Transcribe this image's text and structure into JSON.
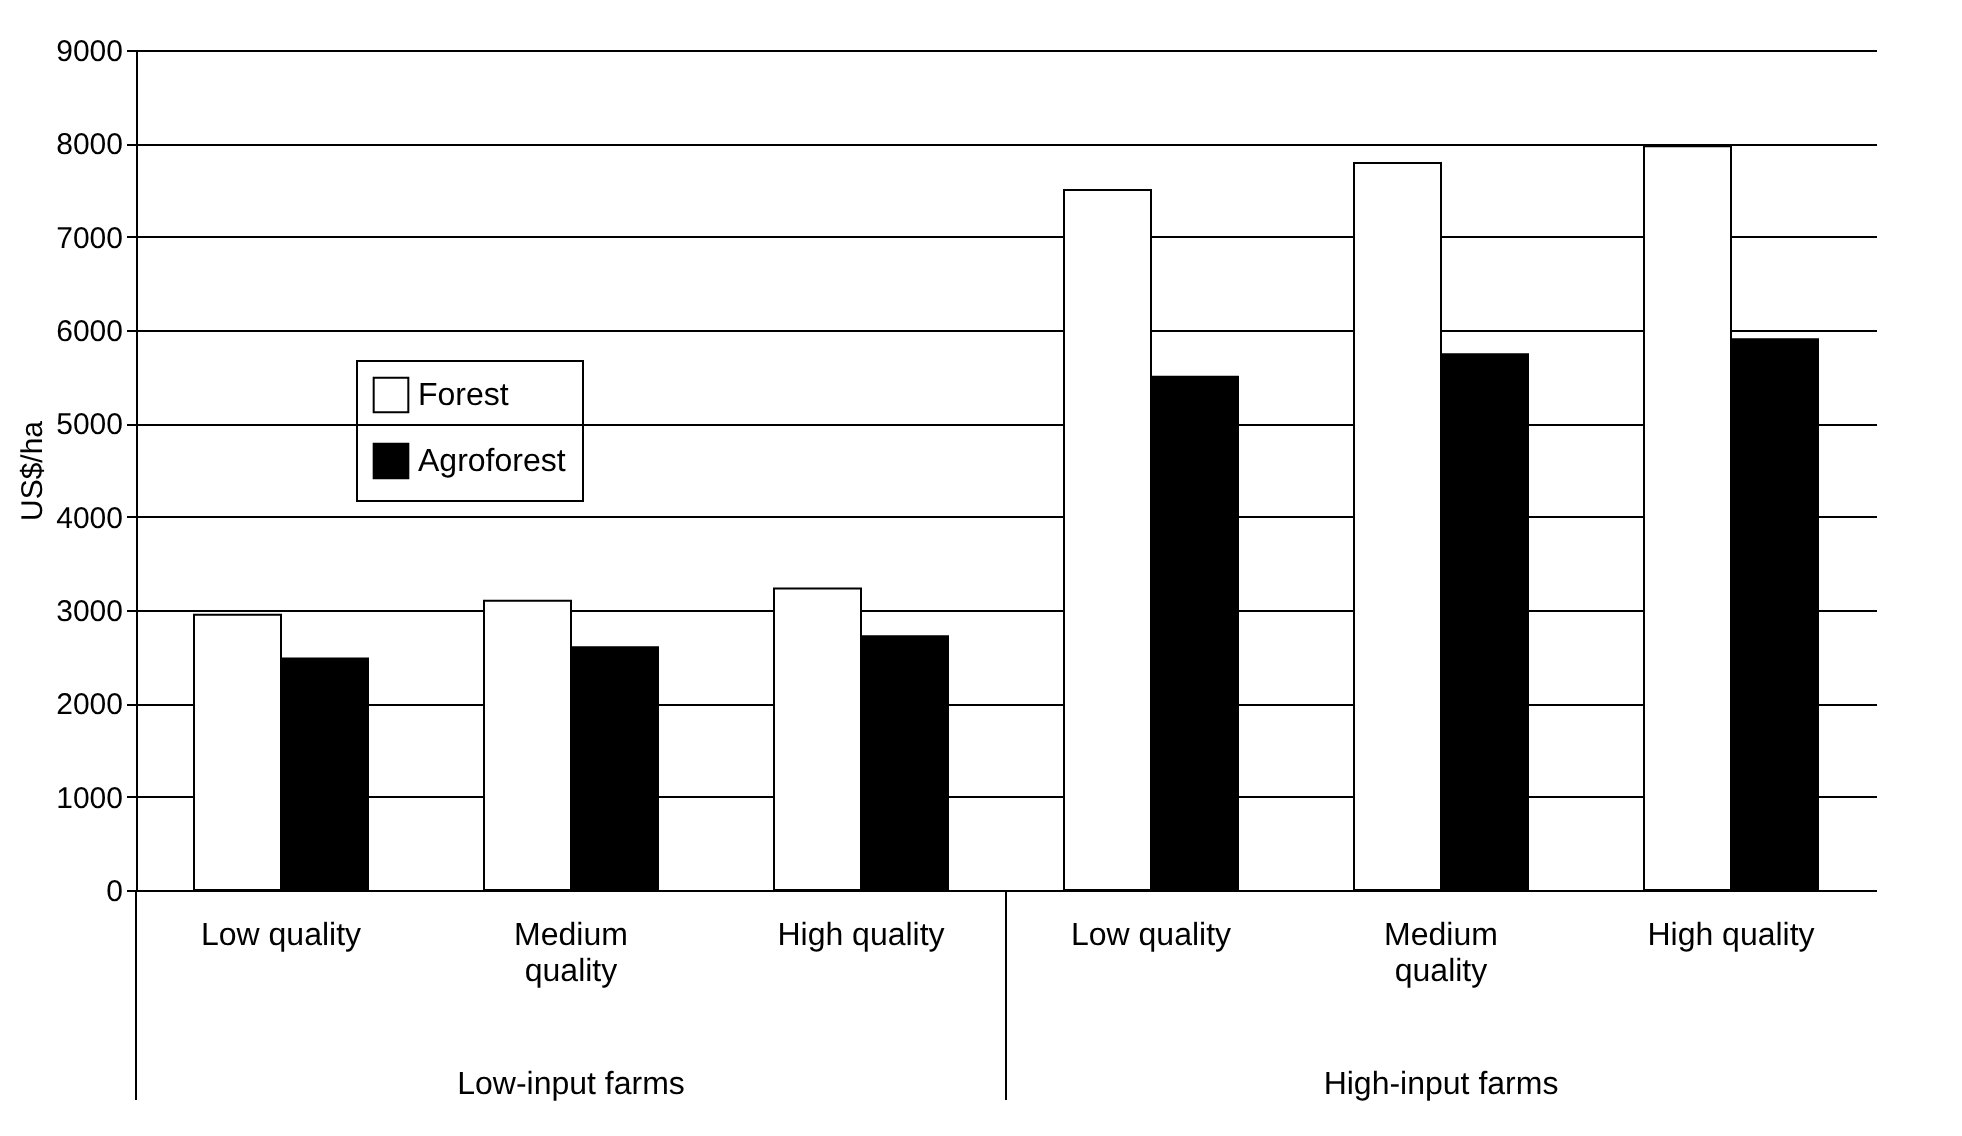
{
  "chart_data": {
    "type": "bar",
    "ylabel": "US$/ha",
    "categories": [
      "Low quality",
      "Medium quality",
      "High quality",
      "Low quality",
      "Medium quality",
      "High quality"
    ],
    "series": [
      {
        "name": "Forest",
        "color": "#ffffff",
        "values": [
          2950,
          3100,
          3230,
          7500,
          7790,
          7970
        ]
      },
      {
        "name": "Agroforest",
        "color": "#000000",
        "values": [
          2480,
          2600,
          2720,
          5500,
          5740,
          5900
        ]
      }
    ],
    "ylim": [
      0,
      9000
    ],
    "yticks": [
      0,
      1000,
      2000,
      3000,
      4000,
      5000,
      6000,
      7000,
      8000,
      9000
    ],
    "grid": "y",
    "legend": "left",
    "annotations": [
      "Low-input farms",
      "High-input farms"
    ]
  }
}
